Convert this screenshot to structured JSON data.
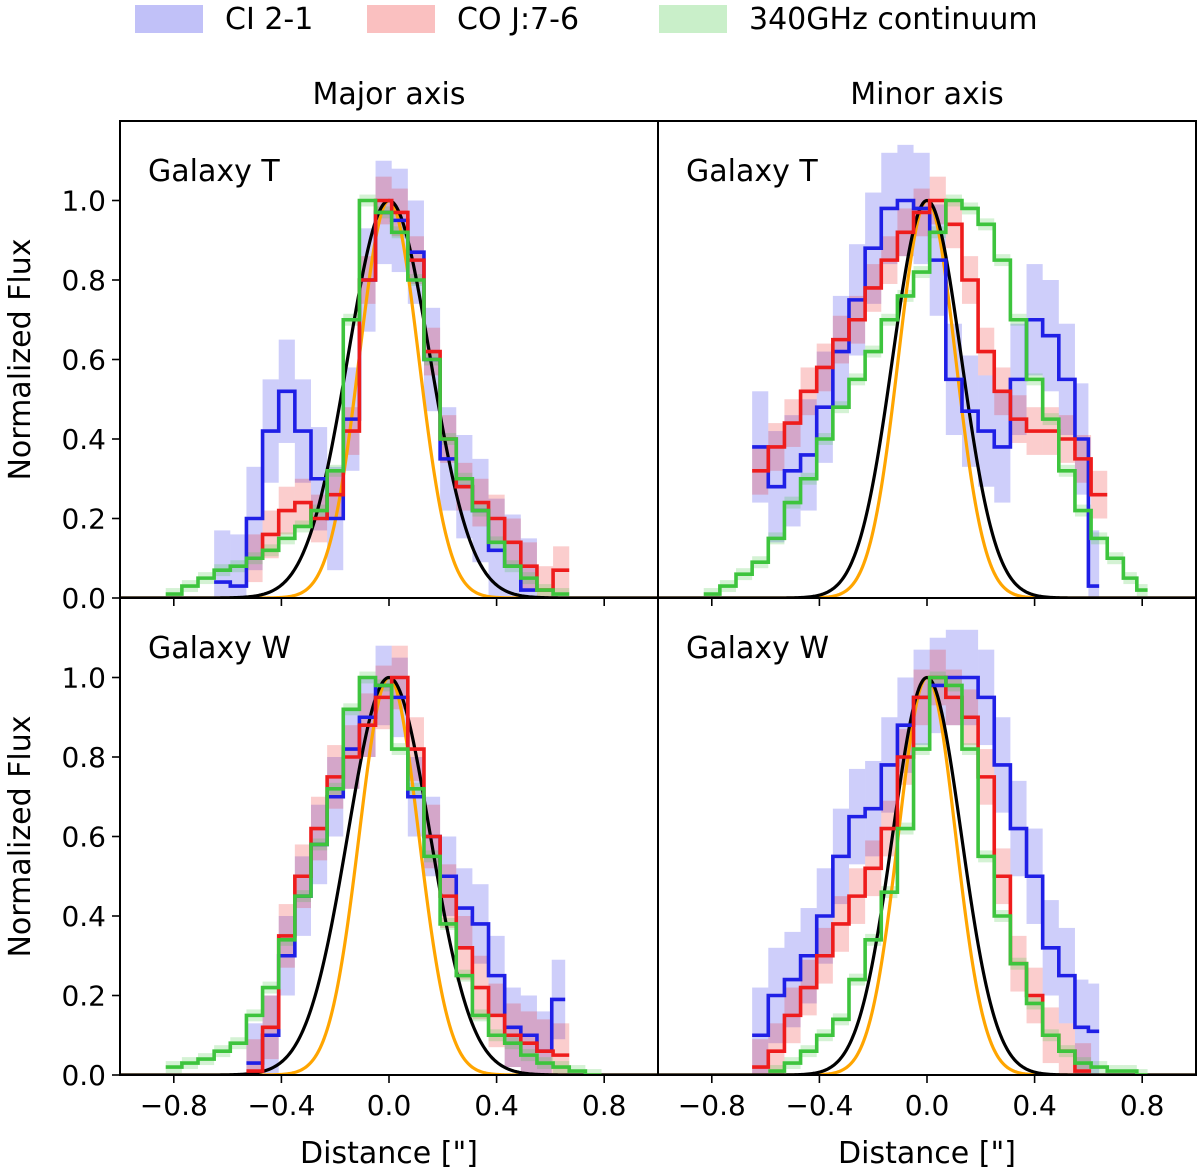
{
  "chart_data": {
    "type": "line",
    "layout": "2x2 grid of panels with shared axes",
    "column_titles": [
      "Major axis",
      "Minor axis"
    ],
    "xlabel": "Distance [\"]",
    "ylabel": "Normalized Flux",
    "xlim": [
      -1.0,
      1.0
    ],
    "ylim": [
      0.0,
      1.2
    ],
    "xticks": [
      -0.8,
      -0.4,
      0.0,
      0.4,
      0.8
    ],
    "xtick_labels": [
      "−0.8",
      "−0.4",
      "0.0",
      "0.4",
      "0.8"
    ],
    "yticks": [
      0.0,
      0.2,
      0.4,
      0.6,
      0.8,
      1.0
    ],
    "ytick_labels": [
      "0.0",
      "0.2",
      "0.4",
      "0.6",
      "0.8",
      "1.0"
    ],
    "legend": {
      "placement": "top, above panels",
      "entries": [
        {
          "label": "CI 2-1",
          "color": "#1f1fe6"
        },
        {
          "label": "CO J:7-6",
          "color": "#ee1c1c"
        },
        {
          "label": "340GHz continuum",
          "color": "#3dc43d"
        }
      ]
    },
    "beam_curves": [
      {
        "name": "beam-black",
        "color": "#000000",
        "fwhm_major": 0.36,
        "fwhm_minor": 0.3
      },
      {
        "name": "beam-orange",
        "color": "#ffa500",
        "fwhm_major": 0.26,
        "fwhm_minor": 0.25
      }
    ],
    "panels": [
      {
        "id": "major-T",
        "label": "Galaxy T",
        "column": "Major axis",
        "series": [
          {
            "name": "CI 2-1",
            "color": "#1f1fe6",
            "err": 0.13,
            "x": [
              -0.62,
              -0.56,
              -0.5,
              -0.44,
              -0.38,
              -0.32,
              -0.26,
              -0.2,
              -0.14,
              -0.08,
              -0.02,
              0.04,
              0.1,
              0.16,
              0.22,
              0.28,
              0.34,
              0.4,
              0.46,
              0.52
            ],
            "y": [
              0.04,
              0.03,
              0.2,
              0.42,
              0.52,
              0.42,
              0.3,
              0.2,
              0.45,
              0.8,
              0.97,
              0.95,
              0.87,
              0.6,
              0.35,
              0.28,
              0.22,
              0.12,
              0.08,
              0.02
            ]
          },
          {
            "name": "CO J:7-6",
            "color": "#ee1c1c",
            "err": 0.06,
            "x": [
              -0.5,
              -0.44,
              -0.38,
              -0.32,
              -0.26,
              -0.2,
              -0.14,
              -0.08,
              -0.02,
              0.04,
              0.1,
              0.16,
              0.22,
              0.28,
              0.34,
              0.4,
              0.46,
              0.52,
              0.58,
              0.64
            ],
            "y": [
              0.1,
              0.16,
              0.22,
              0.24,
              0.2,
              0.26,
              0.42,
              0.8,
              1.0,
              0.97,
              0.85,
              0.62,
              0.4,
              0.28,
              0.24,
              0.2,
              0.14,
              0.08,
              0.02,
              0.07
            ]
          },
          {
            "name": "340GHz continuum",
            "color": "#3dc43d",
            "err": 0.015,
            "x": [
              -0.8,
              -0.74,
              -0.68,
              -0.62,
              -0.56,
              -0.5,
              -0.44,
              -0.38,
              -0.32,
              -0.26,
              -0.2,
              -0.14,
              -0.08,
              -0.02,
              0.04,
              0.1,
              0.16,
              0.22,
              0.28,
              0.34,
              0.4,
              0.46,
              0.52,
              0.58,
              0.64
            ],
            "y": [
              0.01,
              0.03,
              0.05,
              0.07,
              0.08,
              0.1,
              0.12,
              0.15,
              0.18,
              0.22,
              0.32,
              0.7,
              1.0,
              0.97,
              0.92,
              0.8,
              0.6,
              0.4,
              0.3,
              0.22,
              0.14,
              0.08,
              0.05,
              0.02,
              0.01
            ]
          }
        ]
      },
      {
        "id": "minor-T",
        "label": "Galaxy T",
        "column": "Minor axis",
        "series": [
          {
            "name": "CI 2-1",
            "color": "#1f1fe6",
            "err": 0.14,
            "x": [
              -0.62,
              -0.56,
              -0.5,
              -0.44,
              -0.38,
              -0.32,
              -0.26,
              -0.2,
              -0.14,
              -0.08,
              -0.02,
              0.04,
              0.1,
              0.16,
              0.22,
              0.28,
              0.34,
              0.4,
              0.46,
              0.52,
              0.58,
              0.62
            ],
            "y": [
              0.38,
              0.28,
              0.32,
              0.36,
              0.48,
              0.62,
              0.75,
              0.88,
              0.98,
              1.0,
              0.98,
              0.85,
              0.55,
              0.47,
              0.42,
              0.38,
              0.55,
              0.7,
              0.66,
              0.55,
              0.4,
              0.03
            ]
          },
          {
            "name": "CO J:7-6",
            "color": "#ee1c1c",
            "err": 0.06,
            "x": [
              -0.62,
              -0.56,
              -0.5,
              -0.44,
              -0.38,
              -0.32,
              -0.26,
              -0.2,
              -0.14,
              -0.08,
              -0.02,
              0.04,
              0.1,
              0.16,
              0.22,
              0.28,
              0.34,
              0.4,
              0.46,
              0.52,
              0.58,
              0.64
            ],
            "y": [
              0.32,
              0.38,
              0.44,
              0.52,
              0.58,
              0.65,
              0.7,
              0.78,
              0.85,
              0.92,
              0.97,
              1.0,
              0.94,
              0.8,
              0.62,
              0.52,
              0.45,
              0.42,
              0.42,
              0.4,
              0.35,
              0.26
            ]
          },
          {
            "name": "340GHz continuum",
            "color": "#3dc43d",
            "err": 0.015,
            "x": [
              -0.8,
              -0.74,
              -0.68,
              -0.62,
              -0.56,
              -0.5,
              -0.44,
              -0.38,
              -0.32,
              -0.26,
              -0.2,
              -0.14,
              -0.08,
              -0.02,
              0.04,
              0.1,
              0.16,
              0.22,
              0.28,
              0.34,
              0.4,
              0.46,
              0.52,
              0.58,
              0.64,
              0.7,
              0.76,
              0.8
            ],
            "y": [
              0.01,
              0.03,
              0.06,
              0.09,
              0.15,
              0.24,
              0.3,
              0.4,
              0.48,
              0.55,
              0.62,
              0.7,
              0.76,
              0.82,
              0.92,
              1.0,
              0.98,
              0.94,
              0.85,
              0.7,
              0.55,
              0.45,
              0.32,
              0.22,
              0.15,
              0.1,
              0.05,
              0.02
            ]
          }
        ]
      },
      {
        "id": "major-W",
        "label": "Galaxy W",
        "column": "Major axis",
        "series": [
          {
            "name": "CI 2-1",
            "color": "#1f1fe6",
            "err": 0.1,
            "x": [
              -0.5,
              -0.44,
              -0.38,
              -0.32,
              -0.26,
              -0.2,
              -0.14,
              -0.08,
              -0.02,
              0.04,
              0.1,
              0.16,
              0.22,
              0.28,
              0.34,
              0.4,
              0.46,
              0.52,
              0.58,
              0.63
            ],
            "y": [
              0.03,
              0.1,
              0.3,
              0.45,
              0.58,
              0.7,
              0.82,
              0.9,
              0.98,
              0.95,
              0.7,
              0.6,
              0.5,
              0.42,
              0.38,
              0.25,
              0.12,
              0.1,
              0.06,
              0.19
            ]
          },
          {
            "name": "CO J:7-6",
            "color": "#ee1c1c",
            "err": 0.08,
            "x": [
              -0.5,
              -0.44,
              -0.38,
              -0.32,
              -0.26,
              -0.2,
              -0.14,
              -0.08,
              -0.02,
              0.04,
              0.1,
              0.16,
              0.22,
              0.28,
              0.34,
              0.4,
              0.46,
              0.52,
              0.58,
              0.64
            ],
            "y": [
              0.01,
              0.12,
              0.35,
              0.5,
              0.62,
              0.75,
              0.8,
              0.88,
              0.95,
              1.0,
              0.82,
              0.6,
              0.45,
              0.32,
              0.22,
              0.15,
              0.1,
              0.08,
              0.06,
              0.05
            ]
          },
          {
            "name": "340GHz continuum",
            "color": "#3dc43d",
            "err": 0.015,
            "x": [
              -0.8,
              -0.74,
              -0.68,
              -0.62,
              -0.56,
              -0.5,
              -0.44,
              -0.38,
              -0.32,
              -0.26,
              -0.2,
              -0.14,
              -0.08,
              -0.02,
              0.04,
              0.1,
              0.16,
              0.22,
              0.28,
              0.34,
              0.4,
              0.46,
              0.52,
              0.58,
              0.64,
              0.7,
              0.76
            ],
            "y": [
              0.02,
              0.03,
              0.04,
              0.06,
              0.08,
              0.15,
              0.22,
              0.34,
              0.45,
              0.58,
              0.72,
              0.92,
              1.0,
              0.98,
              0.82,
              0.72,
              0.55,
              0.38,
              0.25,
              0.15,
              0.1,
              0.08,
              0.05,
              0.03,
              0.02,
              0.01,
              0.0
            ]
          }
        ]
      },
      {
        "id": "minor-W",
        "label": "Galaxy W",
        "column": "Minor axis",
        "series": [
          {
            "name": "CI 2-1",
            "color": "#1f1fe6",
            "err": 0.12,
            "x": [
              -0.62,
              -0.56,
              -0.5,
              -0.44,
              -0.38,
              -0.32,
              -0.26,
              -0.2,
              -0.14,
              -0.08,
              -0.02,
              0.04,
              0.1,
              0.16,
              0.22,
              0.28,
              0.34,
              0.4,
              0.46,
              0.52,
              0.58,
              0.62
            ],
            "y": [
              0.1,
              0.2,
              0.24,
              0.3,
              0.4,
              0.55,
              0.65,
              0.67,
              0.78,
              0.88,
              0.95,
              0.98,
              1.0,
              1.0,
              0.95,
              0.78,
              0.62,
              0.5,
              0.32,
              0.25,
              0.12,
              0.11
            ]
          },
          {
            "name": "CO J:7-6",
            "color": "#ee1c1c",
            "err": 0.07,
            "x": [
              -0.62,
              -0.56,
              -0.5,
              -0.44,
              -0.38,
              -0.32,
              -0.26,
              -0.2,
              -0.14,
              -0.08,
              -0.02,
              0.04,
              0.1,
              0.16,
              0.22,
              0.28,
              0.34,
              0.4,
              0.46,
              0.52,
              0.58
            ],
            "y": [
              0.02,
              0.06,
              0.15,
              0.22,
              0.3,
              0.38,
              0.45,
              0.52,
              0.62,
              0.8,
              0.95,
              1.0,
              0.95,
              0.9,
              0.75,
              0.5,
              0.28,
              0.2,
              0.1,
              0.06,
              0.01
            ]
          },
          {
            "name": "340GHz continuum",
            "color": "#3dc43d",
            "err": 0.015,
            "x": [
              -0.56,
              -0.5,
              -0.44,
              -0.38,
              -0.32,
              -0.26,
              -0.2,
              -0.14,
              -0.08,
              -0.02,
              0.04,
              0.1,
              0.16,
              0.22,
              0.28,
              0.34,
              0.4,
              0.46,
              0.52,
              0.58,
              0.64,
              0.7,
              0.76,
              0.8
            ],
            "y": [
              0.01,
              0.03,
              0.06,
              0.1,
              0.14,
              0.24,
              0.34,
              0.46,
              0.62,
              0.82,
              1.0,
              0.98,
              0.82,
              0.55,
              0.4,
              0.28,
              0.18,
              0.1,
              0.06,
              0.03,
              0.02,
              0.01,
              0.01,
              0.0
            ]
          }
        ]
      }
    ]
  }
}
